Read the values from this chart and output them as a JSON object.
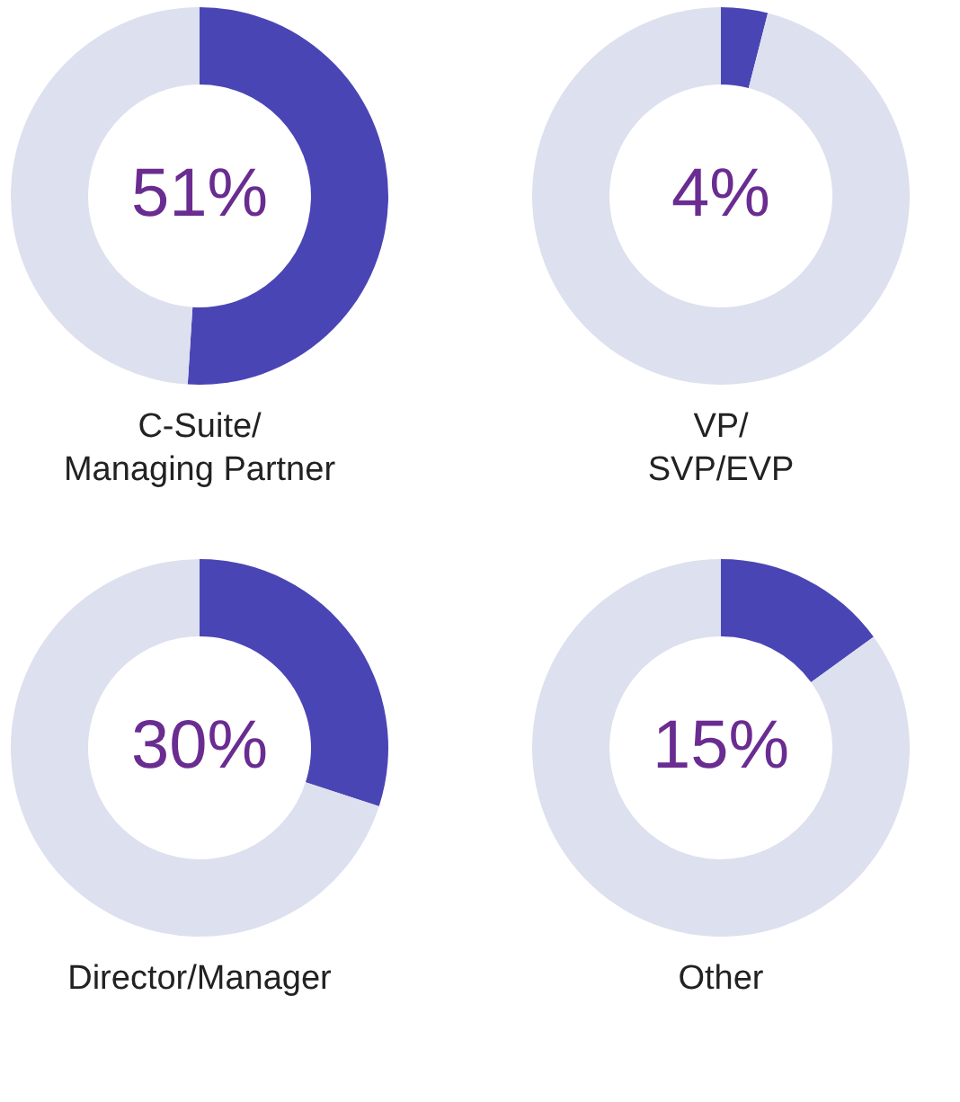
{
  "chart_data": [
    {
      "type": "donut",
      "title": "C-Suite/\nManaging Partner",
      "categories": [
        null,
        null
      ],
      "values": [
        51,
        49
      ],
      "colors": [
        "#4a45b4",
        "#dde0ee"
      ],
      "value_labels": [
        "51%",
        null
      ]
    },
    {
      "type": "donut",
      "title": "VP/\nSVP/EVP",
      "categories": [
        null,
        null
      ],
      "values": [
        4,
        96
      ],
      "colors": [
        "#4a45b4",
        "#dde0ee"
      ],
      "value_labels": [
        "4%",
        null
      ]
    },
    {
      "type": "donut",
      "title": "Director/Manager",
      "categories": [
        null,
        null
      ],
      "values": [
        30,
        70
      ],
      "colors": [
        "#4a45b4",
        "#dde0ee"
      ],
      "value_labels": [
        "30%",
        null
      ]
    },
    {
      "type": "donut",
      "title": "Other",
      "categories": [
        null,
        null
      ],
      "values": [
        15,
        85
      ],
      "colors": [
        "#4a45b4",
        "#dde0ee"
      ],
      "value_labels": [
        "15%",
        null
      ]
    }
  ]
}
